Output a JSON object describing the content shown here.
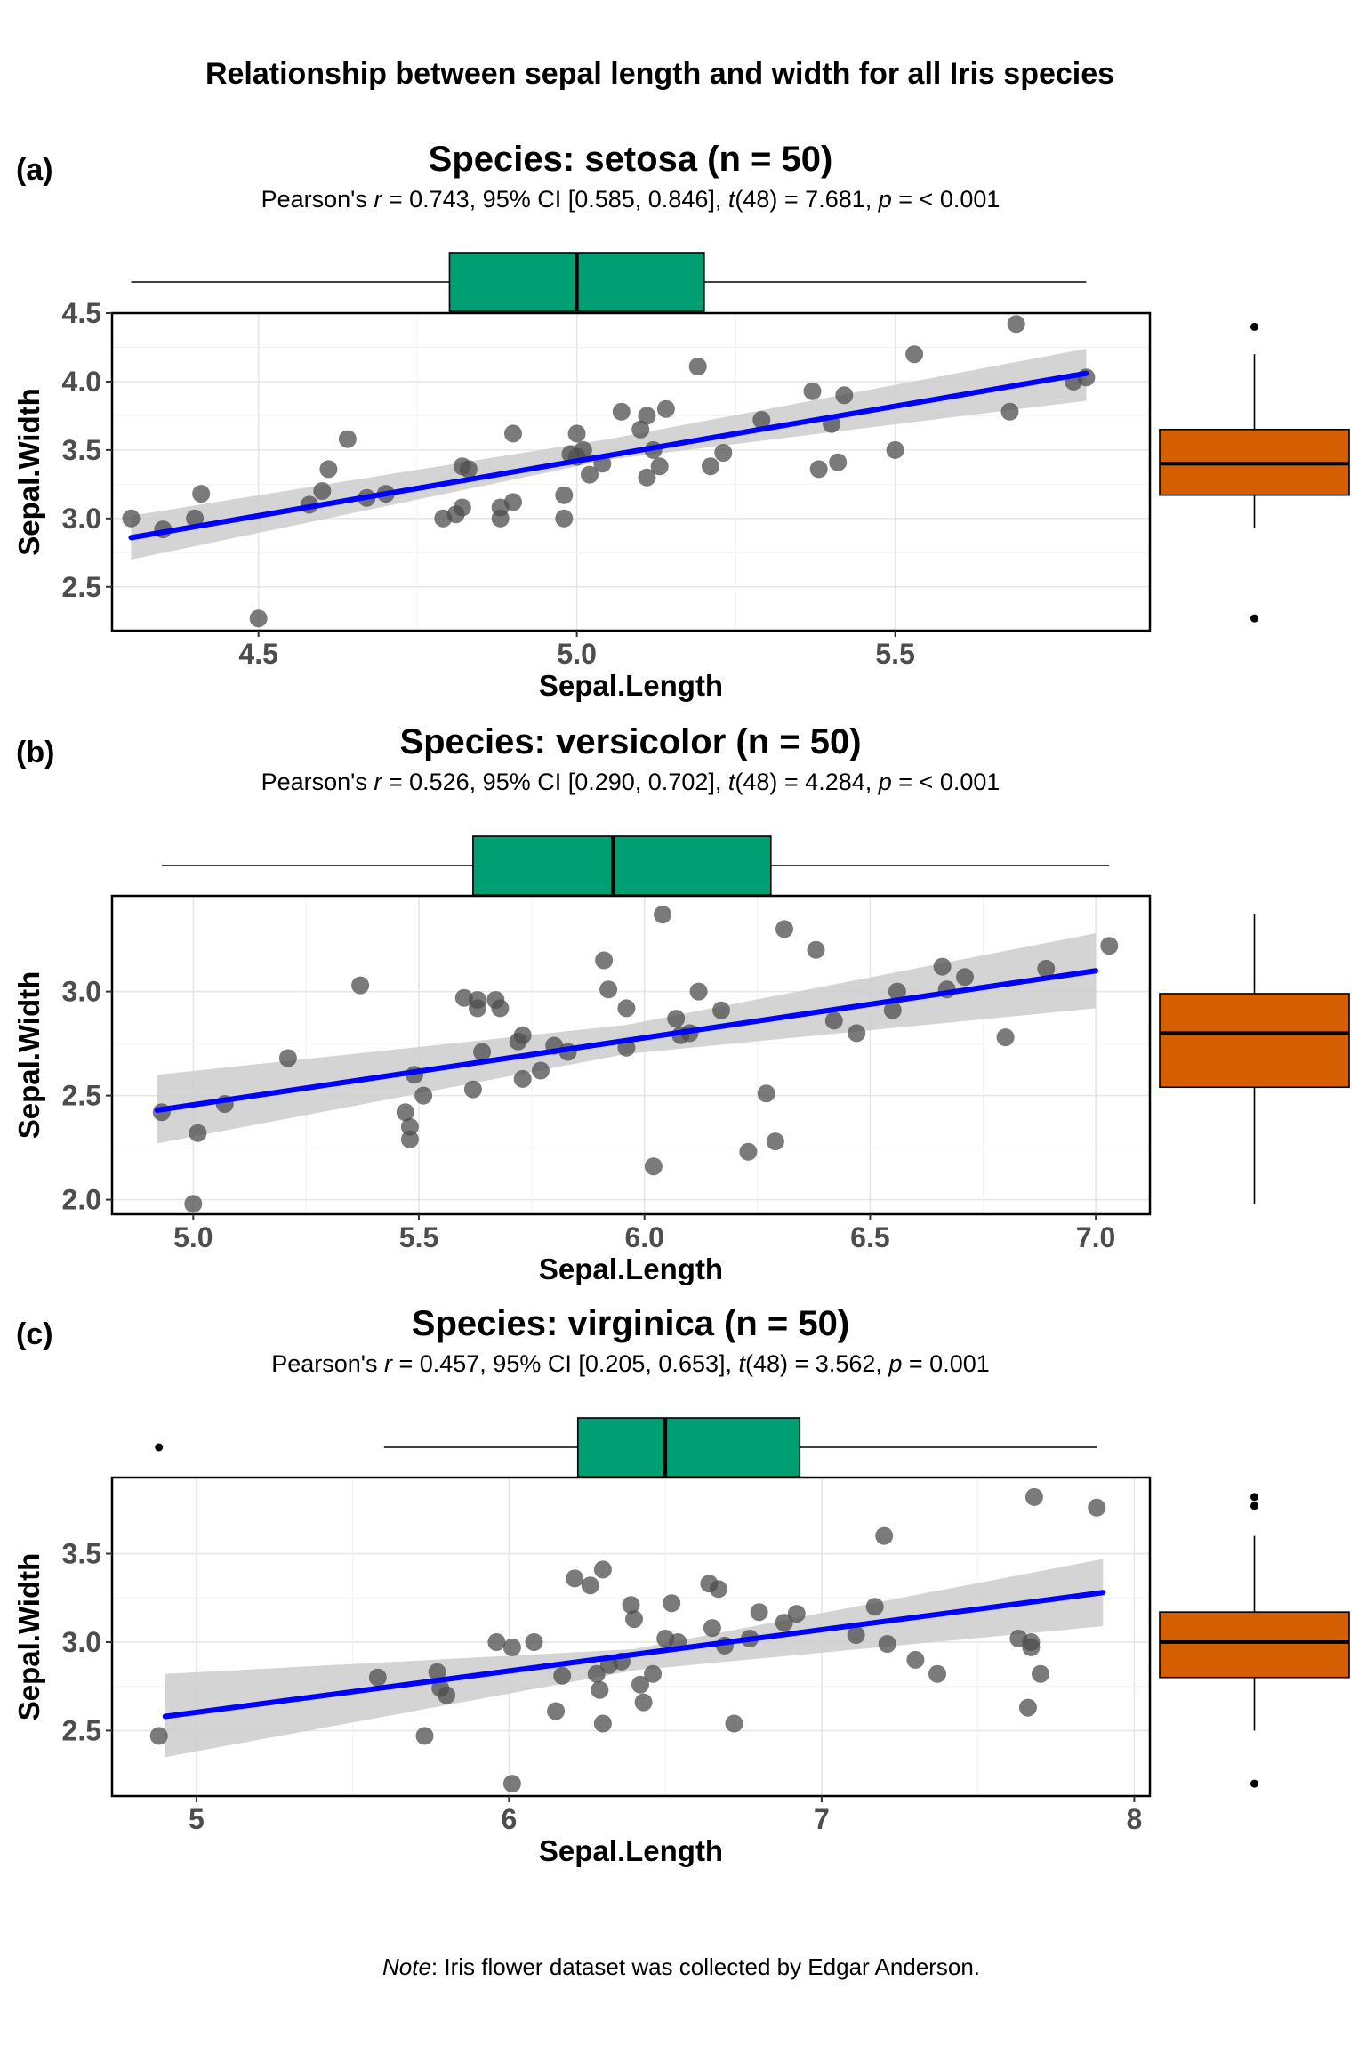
{
  "figure": {
    "title": "Relationship between sepal length and width for all Iris species",
    "caption_prefix": "Note",
    "caption_text": ": Iris flower dataset was collected by Edgar Anderson."
  },
  "colors": {
    "marginal_x_fill": "#009E73",
    "marginal_y_fill": "#D55E00",
    "regression_line": "#0000FF",
    "ci_band": "#CCCCCC",
    "points": "#4D4D4D"
  },
  "chart_data": [
    {
      "type": "scatter",
      "tag": "(a)",
      "title": "Species: setosa (n = 50)",
      "subtitle": [
        {
          "t": "Pearson's ",
          "i": false
        },
        {
          "t": "r",
          "i": true
        },
        {
          "t": " = 0.743, 95% CI [0.585, 0.846], ",
          "i": false
        },
        {
          "t": "t",
          "i": true
        },
        {
          "t": "(48) = 7.681, ",
          "i": false
        },
        {
          "t": "p",
          "i": true
        },
        {
          "t": " = < 0.001",
          "i": false
        }
      ],
      "xlabel": "Sepal.Length",
      "ylabel": "Sepal.Width",
      "xlim": [
        4.27,
        5.9
      ],
      "ylim": [
        2.18,
        4.5
      ],
      "xticks": [
        4.5,
        5.0,
        5.5
      ],
      "xtick_labels": [
        "4.5",
        "5.0",
        "5.5"
      ],
      "yticks": [
        2.5,
        3.0,
        3.5,
        4.0,
        4.5
      ],
      "ytick_labels": [
        "2.5",
        "3.0",
        "3.5",
        "4.0",
        "4.5"
      ],
      "grid": true,
      "points": [
        [
          4.3,
          3.0
        ],
        [
          4.35,
          2.92
        ],
        [
          4.4,
          3.0
        ],
        [
          4.41,
          3.18
        ],
        [
          4.5,
          2.27
        ],
        [
          4.58,
          3.1
        ],
        [
          4.6,
          3.2
        ],
        [
          4.61,
          3.36
        ],
        [
          4.64,
          3.58
        ],
        [
          4.67,
          3.15
        ],
        [
          4.7,
          3.18
        ],
        [
          4.79,
          3.0
        ],
        [
          4.81,
          3.03
        ],
        [
          4.82,
          3.08
        ],
        [
          4.82,
          3.38
        ],
        [
          4.83,
          3.36
        ],
        [
          4.88,
          3.0
        ],
        [
          4.88,
          3.08
        ],
        [
          4.9,
          3.12
        ],
        [
          4.9,
          3.62
        ],
        [
          4.98,
          3.0
        ],
        [
          4.98,
          3.17
        ],
        [
          4.99,
          3.47
        ],
        [
          5.0,
          3.62
        ],
        [
          5.0,
          3.45
        ],
        [
          5.01,
          3.5
        ],
        [
          5.02,
          3.32
        ],
        [
          5.04,
          3.4
        ],
        [
          5.07,
          3.78
        ],
        [
          5.1,
          3.65
        ],
        [
          5.11,
          3.3
        ],
        [
          5.11,
          3.75
        ],
        [
          5.12,
          3.5
        ],
        [
          5.13,
          3.38
        ],
        [
          5.14,
          3.8
        ],
        [
          5.19,
          4.11
        ],
        [
          5.21,
          3.38
        ],
        [
          5.23,
          3.48
        ],
        [
          5.29,
          3.72
        ],
        [
          5.37,
          3.93
        ],
        [
          5.38,
          3.36
        ],
        [
          5.4,
          3.69
        ],
        [
          5.41,
          3.41
        ],
        [
          5.42,
          3.9
        ],
        [
          5.5,
          3.5
        ],
        [
          5.53,
          4.2
        ],
        [
          5.68,
          3.78
        ],
        [
          5.69,
          4.42
        ],
        [
          5.8,
          4.03
        ],
        [
          5.78,
          4.0
        ]
      ],
      "fit": {
        "x": [
          4.3,
          5.8
        ],
        "y": [
          2.86,
          4.06
        ]
      },
      "ci": {
        "x": [
          4.3,
          5.05,
          5.8
        ],
        "lower": [
          2.7,
          3.43,
          3.86
        ],
        "upper": [
          3.02,
          3.58,
          4.24
        ]
      },
      "marginal_x": {
        "whisker_low": 4.3,
        "q1": 4.8,
        "median": 5.0,
        "q3": 5.2,
        "whisker_high": 5.8,
        "outliers": []
      },
      "marginal_y": {
        "whisker_low": 2.93,
        "q1": 3.17,
        "median": 3.4,
        "q3": 3.65,
        "whisker_high": 4.2,
        "outliers": [
          4.4,
          2.27
        ]
      }
    },
    {
      "type": "scatter",
      "tag": "(b)",
      "title": "Species: versicolor (n = 50)",
      "subtitle": [
        {
          "t": "Pearson's ",
          "i": false
        },
        {
          "t": "r",
          "i": true
        },
        {
          "t": " = 0.526, 95% CI [0.290, 0.702], ",
          "i": false
        },
        {
          "t": "t",
          "i": true
        },
        {
          "t": "(48) = 4.284, ",
          "i": false
        },
        {
          "t": "p",
          "i": true
        },
        {
          "t": " = < 0.001",
          "i": false
        }
      ],
      "xlabel": "Sepal.Length",
      "ylabel": "Sepal.Width",
      "xlim": [
        4.82,
        7.12
      ],
      "ylim": [
        1.93,
        3.46
      ],
      "xticks": [
        5.0,
        5.5,
        6.0,
        6.5,
        7.0
      ],
      "xtick_labels": [
        "5.0",
        "5.5",
        "6.0",
        "6.5",
        "7.0"
      ],
      "yticks": [
        2.0,
        2.5,
        3.0
      ],
      "ytick_labels": [
        "2.0",
        "2.5",
        "3.0"
      ],
      "grid": true,
      "points": [
        [
          4.93,
          2.42
        ],
        [
          5.0,
          1.98
        ],
        [
          5.01,
          2.32
        ],
        [
          5.07,
          2.46
        ],
        [
          5.21,
          2.68
        ],
        [
          5.37,
          3.03
        ],
        [
          5.47,
          2.42
        ],
        [
          5.48,
          2.35
        ],
        [
          5.48,
          2.29
        ],
        [
          5.49,
          2.6
        ],
        [
          5.51,
          2.5
        ],
        [
          5.6,
          2.97
        ],
        [
          5.62,
          2.53
        ],
        [
          5.63,
          2.96
        ],
        [
          5.63,
          2.92
        ],
        [
          5.64,
          2.71
        ],
        [
          5.67,
          2.96
        ],
        [
          5.68,
          2.92
        ],
        [
          5.72,
          2.76
        ],
        [
          5.73,
          2.58
        ],
        [
          5.73,
          2.79
        ],
        [
          5.77,
          2.62
        ],
        [
          5.8,
          2.74
        ],
        [
          5.83,
          2.71
        ],
        [
          5.91,
          3.15
        ],
        [
          5.92,
          3.01
        ],
        [
          5.96,
          2.92
        ],
        [
          5.96,
          2.73
        ],
        [
          6.02,
          2.16
        ],
        [
          6.04,
          3.37
        ],
        [
          6.07,
          2.87
        ],
        [
          6.08,
          2.79
        ],
        [
          6.1,
          2.8
        ],
        [
          6.12,
          3.0
        ],
        [
          6.17,
          2.91
        ],
        [
          6.23,
          2.23
        ],
        [
          6.27,
          2.51
        ],
        [
          6.29,
          2.28
        ],
        [
          6.31,
          3.3
        ],
        [
          6.38,
          3.2
        ],
        [
          6.42,
          2.86
        ],
        [
          6.47,
          2.8
        ],
        [
          6.55,
          2.91
        ],
        [
          6.56,
          3.0
        ],
        [
          6.66,
          3.12
        ],
        [
          6.67,
          3.01
        ],
        [
          6.71,
          3.07
        ],
        [
          6.8,
          2.78
        ],
        [
          6.89,
          3.11
        ],
        [
          7.03,
          3.22
        ]
      ],
      "fit": {
        "x": [
          4.92,
          7.0
        ],
        "y": [
          2.43,
          3.1
        ]
      },
      "ci": {
        "x": [
          4.92,
          5.96,
          7.0
        ],
        "lower": [
          2.27,
          2.7,
          2.92
        ],
        "upper": [
          2.6,
          2.84,
          3.28
        ]
      },
      "marginal_x": {
        "whisker_low": 4.93,
        "q1": 5.62,
        "median": 5.93,
        "q3": 6.28,
        "whisker_high": 7.03,
        "outliers": []
      },
      "marginal_y": {
        "whisker_low": 1.98,
        "q1": 2.54,
        "median": 2.8,
        "q3": 2.99,
        "whisker_high": 3.37,
        "outliers": []
      }
    },
    {
      "type": "scatter",
      "tag": "(c)",
      "title": "Species: virginica (n = 50)",
      "subtitle": [
        {
          "t": "Pearson's ",
          "i": false
        },
        {
          "t": "r",
          "i": true
        },
        {
          "t": " = 0.457, 95% CI [0.205, 0.653], ",
          "i": false
        },
        {
          "t": "t",
          "i": true
        },
        {
          "t": "(48) = 3.562, ",
          "i": false
        },
        {
          "t": "p",
          "i": true
        },
        {
          "t": " = 0.001",
          "i": false
        }
      ],
      "xlabel": "Sepal.Length",
      "ylabel": "Sepal.Width",
      "xlim": [
        4.73,
        8.05
      ],
      "ylim": [
        2.13,
        3.93
      ],
      "xticks": [
        5,
        6,
        7,
        8
      ],
      "xtick_labels": [
        "5",
        "6",
        "7",
        "8"
      ],
      "yticks": [
        2.5,
        3.0,
        3.5
      ],
      "ytick_labels": [
        "2.5",
        "3.0",
        "3.5"
      ],
      "grid": true,
      "points": [
        [
          4.88,
          2.47
        ],
        [
          5.58,
          2.8
        ],
        [
          5.73,
          2.47
        ],
        [
          5.77,
          2.83
        ],
        [
          5.78,
          2.74
        ],
        [
          5.8,
          2.7
        ],
        [
          5.96,
          3.0
        ],
        [
          6.01,
          2.97
        ],
        [
          6.01,
          2.2
        ],
        [
          6.08,
          3.0
        ],
        [
          6.15,
          2.61
        ],
        [
          6.17,
          2.81
        ],
        [
          6.21,
          3.36
        ],
        [
          6.26,
          3.32
        ],
        [
          6.28,
          2.82
        ],
        [
          6.29,
          2.73
        ],
        [
          6.3,
          2.54
        ],
        [
          6.3,
          3.41
        ],
        [
          6.32,
          2.87
        ],
        [
          6.36,
          2.89
        ],
        [
          6.39,
          3.21
        ],
        [
          6.4,
          3.13
        ],
        [
          6.42,
          2.76
        ],
        [
          6.43,
          2.66
        ],
        [
          6.46,
          2.82
        ],
        [
          6.5,
          3.02
        ],
        [
          6.52,
          3.22
        ],
        [
          6.54,
          3.0
        ],
        [
          6.64,
          3.33
        ],
        [
          6.65,
          3.08
        ],
        [
          6.67,
          3.3
        ],
        [
          6.69,
          2.98
        ],
        [
          6.72,
          2.54
        ],
        [
          6.77,
          3.02
        ],
        [
          6.8,
          3.17
        ],
        [
          6.88,
          3.11
        ],
        [
          6.92,
          3.16
        ],
        [
          7.11,
          3.04
        ],
        [
          7.17,
          3.2
        ],
        [
          7.2,
          3.6
        ],
        [
          7.21,
          2.99
        ],
        [
          7.3,
          2.9
        ],
        [
          7.37,
          2.82
        ],
        [
          7.63,
          3.02
        ],
        [
          7.66,
          2.63
        ],
        [
          7.67,
          3.0
        ],
        [
          7.68,
          3.82
        ],
        [
          7.7,
          2.82
        ],
        [
          7.88,
          3.76
        ],
        [
          7.67,
          2.97
        ]
      ],
      "fit": {
        "x": [
          4.9,
          7.9
        ],
        "y": [
          2.58,
          3.28
        ]
      },
      "ci": {
        "x": [
          4.9,
          6.4,
          7.9
        ],
        "lower": [
          2.35,
          2.84,
          3.09
        ],
        "upper": [
          2.82,
          2.96,
          3.47
        ]
      },
      "marginal_x": {
        "whisker_low": 5.6,
        "q1": 6.22,
        "median": 6.5,
        "q3": 6.93,
        "whisker_high": 7.88,
        "outliers": [
          4.88
        ]
      },
      "marginal_y": {
        "whisker_low": 2.5,
        "q1": 2.8,
        "median": 3.0,
        "q3": 3.17,
        "whisker_high": 3.6,
        "outliers": [
          3.82,
          3.77,
          2.2
        ]
      }
    }
  ]
}
